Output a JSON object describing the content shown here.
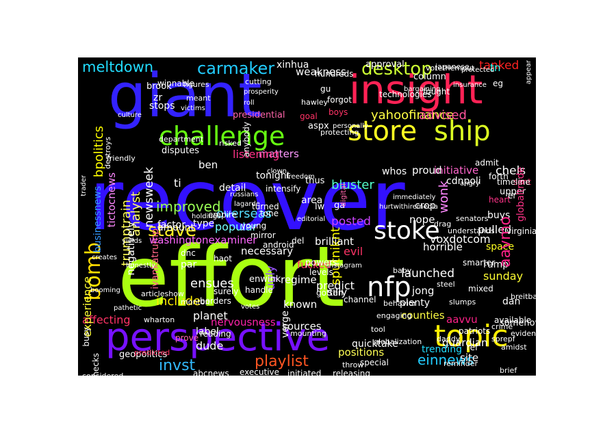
{
  "wordcloud": {
    "background": "#000000",
    "words": [
      {
        "text": "recover",
        "color": "#3311ff"
      },
      {
        "text": "effort",
        "color": "#aaff11"
      },
      {
        "text": "giant",
        "color": "#3322ff"
      },
      {
        "text": "insight",
        "color": "#ff2255"
      },
      {
        "text": "perspective",
        "color": "#7711ff"
      },
      {
        "text": "store",
        "color": "#ffff22"
      },
      {
        "text": "ship",
        "color": "#ddff22"
      },
      {
        "text": "challenge",
        "color": "#66ff11"
      },
      {
        "text": "topic",
        "color": "#ffee00"
      },
      {
        "text": "nfp",
        "color": "#ffffff"
      },
      {
        "text": "stoke",
        "color": "#ffffff"
      },
      {
        "text": "bomb",
        "color": "#ffdd00"
      },
      {
        "text": "stave",
        "color": "#ffee22"
      },
      {
        "text": "desktop",
        "color": "#ccff33"
      },
      {
        "text": "carmaker",
        "color": "#22ccff"
      },
      {
        "text": "meltdown",
        "color": "#22ddff"
      },
      {
        "text": "invst",
        "color": "#33bbff"
      },
      {
        "text": "playlist",
        "color": "#ff5522"
      },
      {
        "text": "einnews",
        "color": "#22ccff"
      },
      {
        "text": "bluster",
        "color": "#55ffcc"
      },
      {
        "text": "overseas",
        "color": "#55ddff"
      },
      {
        "text": "popular",
        "color": "#77ffff"
      },
      {
        "text": "improved",
        "color": "#99ff55"
      },
      {
        "text": "predict",
        "color": "#ffffff"
      },
      {
        "text": "ensues",
        "color": "#ffffff"
      },
      {
        "text": "posted",
        "color": "#cc44ff"
      },
      {
        "text": "necessary",
        "color": "#ffffff"
      },
      {
        "text": "yahoofinance",
        "color": "#ffff44"
      },
      {
        "text": "advised",
        "color": "#ff5599"
      },
      {
        "text": "tanked",
        "color": "#ff2222"
      },
      {
        "text": "initiative",
        "color": "#ff66cc"
      },
      {
        "text": "proud",
        "color": "#ffffff"
      },
      {
        "text": "launched",
        "color": "#ffffff"
      },
      {
        "text": "sputniknt",
        "color": "#ffff00"
      },
      {
        "text": "known",
        "color": "#ffffff"
      },
      {
        "text": "regime",
        "color": "#ffffff"
      },
      {
        "text": "silly",
        "color": "#ffffff"
      },
      {
        "text": "include",
        "color": "#ffee00"
      },
      {
        "text": "planet",
        "color": "#ffffff"
      },
      {
        "text": "ugly",
        "color": "#9955ff"
      },
      {
        "text": "affecting",
        "color": "#ff3366"
      },
      {
        "text": "nervousness",
        "color": "#ff22aa"
      },
      {
        "text": "label",
        "color": "#ffffff"
      },
      {
        "text": "dude",
        "color": "#ffffff"
      },
      {
        "text": "sources",
        "color": "#ffffff"
      },
      {
        "text": "positions",
        "color": "#ffff55"
      },
      {
        "text": "guardian",
        "color": "#ffffff"
      },
      {
        "text": "site",
        "color": "#ffffff"
      },
      {
        "text": "counties",
        "color": "#ffff44"
      },
      {
        "text": "trending",
        "color": "#22ddff"
      },
      {
        "text": "aavvu",
        "color": "#ff2288"
      },
      {
        "text": "jong",
        "color": "#ffffff"
      },
      {
        "text": "sunday",
        "color": "#ffff33"
      },
      {
        "text": "rump",
        "color": "#ffffff"
      },
      {
        "text": "dan",
        "color": "#ffffff"
      },
      {
        "text": "pulled",
        "color": "#ffffff"
      },
      {
        "text": "space",
        "color": "#ffff22"
      },
      {
        "text": "horrible",
        "color": "#ffffff"
      },
      {
        "text": "evil",
        "color": "#ff3366"
      },
      {
        "text": "nope",
        "color": "#ffffff"
      },
      {
        "text": "voxdotcom",
        "color": "#ffffff"
      },
      {
        "text": "buys",
        "color": "#ffffff"
      },
      {
        "text": "aavmo",
        "color": "#ff2288"
      },
      {
        "text": "wonk",
        "color": "#ff88ff"
      },
      {
        "text": "chels",
        "color": "#ffffff"
      },
      {
        "text": "tn",
        "color": "#22ffee"
      },
      {
        "text": "whos",
        "color": "#ffffff"
      },
      {
        "text": "thus",
        "color": "#ffffff"
      },
      {
        "text": "area",
        "color": "#ffffff"
      },
      {
        "text": "tonight",
        "color": "#ffffff"
      },
      {
        "text": "matters",
        "color": "#ff99ff"
      },
      {
        "text": "detail",
        "color": "#ffffff"
      },
      {
        "text": "listening",
        "color": "#ff3388"
      },
      {
        "text": "ben",
        "color": "#ffffff"
      },
      {
        "text": "ti",
        "color": "#ffffff"
      },
      {
        "text": "analyst",
        "color": "#ffff66"
      },
      {
        "text": "newsweek",
        "color": "#ffffff"
      },
      {
        "text": "trumptrain",
        "color": "#ffff55"
      },
      {
        "text": "ivankatrump",
        "color": "#ff6688"
      },
      {
        "text": "experience",
        "color": "#ffff33"
      },
      {
        "text": "businessnews",
        "color": "#3399ff"
      },
      {
        "text": "factor",
        "color": "#ffffff"
      },
      {
        "text": "type",
        "color": "#ffffff"
      },
      {
        "text": "amount",
        "color": "#ffffff"
      },
      {
        "text": "washingtonexaminer",
        "color": "#ff66ff"
      },
      {
        "text": "negatively",
        "color": "#ffffff"
      },
      {
        "text": "tictocnews",
        "color": "#ff88ff"
      },
      {
        "text": "bpolitics",
        "color": "#ffff00"
      },
      {
        "text": "weakness",
        "color": "#ffffff"
      },
      {
        "text": "xinhua",
        "color": "#ffffff"
      },
      {
        "text": "stops",
        "color": "#ffffff"
      },
      {
        "text": "zr",
        "color": "#ffffff"
      },
      {
        "text": "brook",
        "color": "#ffffff"
      },
      {
        "text": "winnable",
        "color": "#ffffff"
      },
      {
        "text": "figures",
        "color": "#ffffff"
      },
      {
        "text": "meant",
        "color": "#ffffff"
      },
      {
        "text": "column",
        "color": "#ffffff"
      },
      {
        "text": "approval",
        "color": "#ffffff"
      },
      {
        "text": "hundreds",
        "color": "#ffffff"
      },
      {
        "text": "votethemout",
        "color": "#ffffff"
      },
      {
        "text": "gu",
        "color": "#ffffff"
      },
      {
        "text": "forgot",
        "color": "#ffffff"
      },
      {
        "text": "hawley",
        "color": "#ffffff"
      },
      {
        "text": "aspx",
        "color": "#ffffff"
      },
      {
        "text": "boys",
        "color": "#ff3366"
      },
      {
        "text": "goal",
        "color": "#ff3366"
      },
      {
        "text": "presidential",
        "color": "#ff66aa"
      },
      {
        "text": "disputes",
        "color": "#ffffff"
      },
      {
        "text": "intensify",
        "color": "#ffffff"
      },
      {
        "text": "turned",
        "color": "#ffffff"
      },
      {
        "text": "empire",
        "color": "#ffffff"
      },
      {
        "text": "young",
        "color": "#ffffff"
      },
      {
        "text": "tone",
        "color": "#ffffff"
      },
      {
        "text": "mirror",
        "color": "#ffffff"
      },
      {
        "text": "android",
        "color": "#ffffff"
      },
      {
        "text": "fucked",
        "color": "#ff3366"
      },
      {
        "text": "brilliant",
        "color": "#ffffff"
      },
      {
        "text": "powers",
        "color": "#ffffff"
      },
      {
        "text": "levels",
        "color": "#ffffff"
      },
      {
        "text": "del",
        "color": "#ffffff"
      },
      {
        "text": "par",
        "color": "#ffffff"
      },
      {
        "text": "dnc",
        "color": "#ffffff"
      },
      {
        "text": "haot",
        "color": "#ffffff"
      },
      {
        "text": "surely",
        "color": "#ffffff"
      },
      {
        "text": "enwink",
        "color": "#ffffff"
      },
      {
        "text": "handle",
        "color": "#ffffff"
      },
      {
        "text": "borders",
        "color": "#ffffff"
      },
      {
        "text": "prove",
        "color": "#ff66aa"
      },
      {
        "text": "reading",
        "color": "#ffffff"
      },
      {
        "text": "geopolitics",
        "color": "#ffffff"
      },
      {
        "text": "executive",
        "color": "#ffffff"
      },
      {
        "text": "abcnews",
        "color": "#ffffff"
      },
      {
        "text": "initiated",
        "color": "#ffffff"
      },
      {
        "text": "releasing",
        "color": "#ffffff"
      },
      {
        "text": "considered",
        "color": "#ffffff"
      },
      {
        "text": "paychecks",
        "color": "#ffffff"
      },
      {
        "text": "busy",
        "color": "#ffffff"
      },
      {
        "text": "verge",
        "color": "#ffffff"
      },
      {
        "text": "quicktake",
        "color": "#ffffff"
      },
      {
        "text": "plenty",
        "color": "#ffffff"
      },
      {
        "text": "cdnpoli",
        "color": "#ffffff"
      },
      {
        "text": "forth",
        "color": "#ffffff"
      },
      {
        "text": "upper",
        "color": "#ffffff"
      },
      {
        "text": "heart",
        "color": "#ff3388"
      },
      {
        "text": "er",
        "color": "#ffffff"
      },
      {
        "text": "crop",
        "color": "#ffffff"
      },
      {
        "text": "lw",
        "color": "#ffffff"
      },
      {
        "text": "ga",
        "color": "#ffffff"
      },
      {
        "text": "somehow",
        "color": "#ffffff"
      },
      {
        "text": "sent",
        "color": "#ff2266"
      },
      {
        "text": "patriots",
        "color": "#ffffff"
      },
      {
        "text": "globaltrade",
        "color": "#ff3388"
      },
      {
        "text": "digital",
        "color": "#ff66aa"
      },
      {
        "text": "technologies",
        "color": "#ffffff"
      },
      {
        "text": "admit",
        "color": "#ffffff"
      },
      {
        "text": "timeline",
        "color": "#ffffff"
      },
      {
        "text": "virginia",
        "color": "#ffffff"
      },
      {
        "text": "eg",
        "color": "#ffffff"
      },
      {
        "text": "fought",
        "color": "#ffffff"
      },
      {
        "text": "japanese",
        "color": "#ffffff"
      },
      {
        "text": "smarter",
        "color": "#ffffff"
      },
      {
        "text": "articleshow",
        "color": "#ffffff"
      },
      {
        "text": "wharton",
        "color": "#ffffff"
      },
      {
        "text": "monton",
        "color": "#ffffff"
      },
      {
        "text": "gotten",
        "color": "#ffffff"
      },
      {
        "text": "channel",
        "color": "#ffffff"
      },
      {
        "text": "mounting",
        "color": "#ffffff"
      },
      {
        "text": "throw",
        "color": "#ffffff"
      },
      {
        "text": "special",
        "color": "#ffffff"
      },
      {
        "text": "engaging",
        "color": "#ffffff"
      },
      {
        "text": "daddy",
        "color": "#ffffff"
      },
      {
        "text": "ref",
        "color": "#ffffff"
      },
      {
        "text": "reminder",
        "color": "#ffffff"
      },
      {
        "text": "fiscal",
        "color": "#ffffff"
      },
      {
        "text": "brief",
        "color": "#ffffff"
      },
      {
        "text": "predicted",
        "color": "#ff3366"
      },
      {
        "text": "available",
        "color": "#ffffff"
      },
      {
        "text": "breitbartnews",
        "color": "#ffffff"
      },
      {
        "text": "amidst",
        "color": "#ffffff"
      },
      {
        "text": "evidence",
        "color": "#ffffff"
      },
      {
        "text": "sprepf",
        "color": "#ffffff"
      },
      {
        "text": "crime",
        "color": "#ffffff"
      },
      {
        "text": "slumps",
        "color": "#ffffff"
      },
      {
        "text": "mixed",
        "color": "#ffffff"
      },
      {
        "text": "steel",
        "color": "#ffffff"
      },
      {
        "text": "understands",
        "color": "#ffffff"
      },
      {
        "text": "drag",
        "color": "#ffffff"
      },
      {
        "text": "senators",
        "color": "#ffffff"
      },
      {
        "text": "baby",
        "color": "#ffffff"
      },
      {
        "text": "behavior",
        "color": "#ffffff"
      },
      {
        "text": "tool",
        "color": "#ffffff"
      },
      {
        "text": "globalization",
        "color": "#ffffff"
      },
      {
        "text": "pathetic",
        "color": "#ffffff"
      },
      {
        "text": "booming",
        "color": "#ffffff"
      },
      {
        "text": "creates",
        "color": "#ffffff"
      },
      {
        "text": "honestly",
        "color": "#ffffff"
      },
      {
        "text": "yields",
        "color": "#ffffff"
      },
      {
        "text": "lagarde",
        "color": "#ffffff"
      },
      {
        "text": "russians",
        "color": "#ffffff"
      },
      {
        "text": "editorial",
        "color": "#ffffff"
      },
      {
        "text": "anybody",
        "color": "#ffffff"
      },
      {
        "text": "department",
        "color": "#ffffff"
      },
      {
        "text": "risked",
        "color": "#ffffff"
      },
      {
        "text": "friendly",
        "color": "#ffffff"
      },
      {
        "text": "destroys",
        "color": "#ffffff"
      },
      {
        "text": "culture",
        "color": "#ffffff"
      },
      {
        "text": "prosperity",
        "color": "#ffffff"
      },
      {
        "text": "personally",
        "color": "#ffffff"
      },
      {
        "text": "roll",
        "color": "#ffffff"
      },
      {
        "text": "cutting",
        "color": "#ffffff"
      },
      {
        "text": "protecting",
        "color": "#ffffff"
      },
      {
        "text": "appear",
        "color": "#ffffff"
      },
      {
        "text": "bargaining",
        "color": "#ffffff"
      },
      {
        "text": "insurance",
        "color": "#ffffff"
      },
      {
        "text": "protected",
        "color": "#ffffff"
      },
      {
        "text": "victims",
        "color": "#ffffff"
      },
      {
        "text": "trader",
        "color": "#ffffff"
      },
      {
        "text": "clown",
        "color": "#ffffff"
      },
      {
        "text": "hurtwithiremedia",
        "color": "#ffffff"
      },
      {
        "text": "angry",
        "color": "#ffffff"
      },
      {
        "text": "votes",
        "color": "#ffffff"
      },
      {
        "text": "freedom",
        "color": "#ffffff"
      },
      {
        "text": "holdings",
        "color": "#ffffff"
      },
      {
        "text": "instagram",
        "color": "#ffffff"
      },
      {
        "text": "immediately",
        "color": "#ffffff"
      },
      {
        "text": "fakepresident",
        "color": "#ffffff"
      },
      {
        "text": "northkorea",
        "color": "#ffffff"
      },
      {
        "text": "weighs",
        "color": "#ffffff"
      },
      {
        "text": "withstand",
        "color": "#ffffff"
      },
      {
        "text": "enemies",
        "color": "#ffffff"
      },
      {
        "text": "nigeria",
        "color": "#ffffff"
      },
      {
        "text": "reporting",
        "color": "#ffffff"
      },
      {
        "text": "interested",
        "color": "#ffffff"
      },
      {
        "text": "unwinnable",
        "color": "#ffffff"
      },
      {
        "text": "acting",
        "color": "#ffffff"
      },
      {
        "text": "southeast",
        "color": "#ffffff"
      }
    ]
  }
}
